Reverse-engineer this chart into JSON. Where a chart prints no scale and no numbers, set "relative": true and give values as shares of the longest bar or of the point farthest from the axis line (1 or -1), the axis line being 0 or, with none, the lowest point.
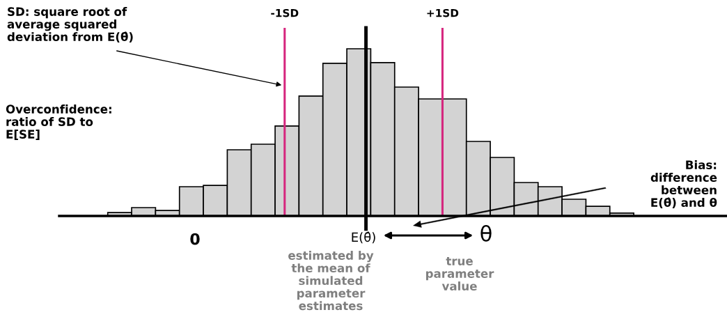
{
  "chart_data": {
    "type": "bar",
    "relative": true,
    "color": "#d3d3d3",
    "categories": [
      null,
      null,
      null,
      null,
      null,
      null,
      null,
      null,
      null,
      null,
      null,
      null,
      null,
      null,
      null,
      null,
      null,
      null,
      null,
      null,
      null,
      null
    ],
    "values": [
      0.02,
      0.05,
      0.033,
      0.175,
      0.183,
      0.396,
      0.429,
      0.538,
      0.717,
      0.913,
      1,
      0.917,
      0.771,
      0.7,
      0.7,
      0.446,
      0.35,
      0.2,
      0.175,
      0.1,
      0.058,
      0.017
    ],
    "annotations": [
      "-1SD",
      "+1SD",
      "SD: square root of average squared deviation from E(θ̂)",
      "Overconfidence: ratio of SD to E[SE]",
      "Bias: difference between E(θ̂) and θ",
      "0",
      "E(θ̂)",
      "θ",
      "estimated by the mean of simulated parameter estimates",
      "true parameter value"
    ],
    "grid": false
  }
}
